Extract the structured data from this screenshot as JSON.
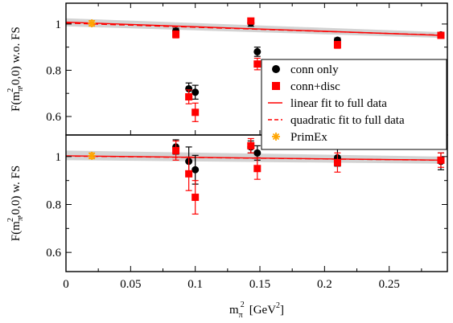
{
  "chart_data": {
    "type": "scatter",
    "xlabel_main": "m",
    "xlabel_sub": "π",
    "xlabel_sup": "2",
    "xlabel_units": "[GeV",
    "xlabel_units_sup": "2",
    "xlabel_units_close": "]",
    "xlim": [
      0,
      0.295
    ],
    "xticks": [
      0,
      0.05,
      0.1,
      0.15,
      0.2,
      0.25
    ],
    "xtick_labels": [
      "0",
      "0.05",
      "0.1",
      "0.15",
      "0.2",
      "0.25"
    ],
    "legend_placement": "right of upper panel",
    "legend": [
      {
        "label": "conn only",
        "marker": "circle",
        "color": "#000000"
      },
      {
        "label": "conn+disc",
        "marker": "square",
        "color": "#ff0000"
      },
      {
        "label": "linear fit to full data",
        "marker": "solid-line",
        "color": "#ff0000"
      },
      {
        "label": "quadratic fit to full data",
        "marker": "dashed-line",
        "color": "#ff0000"
      },
      {
        "label": "PrimEx",
        "marker": "star",
        "color": "#ffa500"
      }
    ],
    "panels": [
      {
        "id": "top",
        "ylabel": "F(m",
        "ylabel_sub": "π",
        "ylabel_rest": ",0,0) w.o. FS",
        "ylim": [
          0.52,
          1.09
        ],
        "yticks": [
          0.6,
          0.8,
          1.0
        ],
        "ytick_labels": [
          "0.6",
          "0.8",
          "1"
        ],
        "band": {
          "x": [
            0,
            0.29
          ],
          "upper": [
            1.025,
            0.965
          ],
          "lower": [
            0.99,
            0.94
          ]
        },
        "linear_fit": {
          "x": [
            0,
            0.29
          ],
          "y": [
            1.008,
            0.951
          ]
        },
        "quadratic_fit": {
          "x": [
            0,
            0.05,
            0.1,
            0.15,
            0.2,
            0.25,
            0.29
          ],
          "y": [
            1.004,
            0.995,
            0.986,
            0.977,
            0.968,
            0.959,
            0.952
          ]
        },
        "conn_only": [
          {
            "x": 0.085,
            "y": 0.97,
            "err": 0.012
          },
          {
            "x": 0.095,
            "y": 0.72,
            "err": 0.025
          },
          {
            "x": 0.1,
            "y": 0.705,
            "err": 0.03
          },
          {
            "x": 0.143,
            "y": 1.005,
            "err": 0.015
          },
          {
            "x": 0.148,
            "y": 0.88,
            "err": 0.02
          },
          {
            "x": 0.21,
            "y": 0.93,
            "err": 0.01
          },
          {
            "x": 0.29,
            "y": 0.953,
            "err": 0.008
          }
        ],
        "conn_disc": [
          {
            "x": 0.085,
            "y": 0.955,
            "err": 0.015
          },
          {
            "x": 0.095,
            "y": 0.685,
            "err": 0.03
          },
          {
            "x": 0.1,
            "y": 0.618,
            "err": 0.04
          },
          {
            "x": 0.143,
            "y": 1.013,
            "err": 0.012
          },
          {
            "x": 0.148,
            "y": 0.827,
            "err": 0.025
          },
          {
            "x": 0.21,
            "y": 0.91,
            "err": 0.015
          },
          {
            "x": 0.29,
            "y": 0.951,
            "err": 0.01
          }
        ],
        "primex": {
          "x": 0.02,
          "y": 1.003,
          "err": 0.012
        }
      },
      {
        "id": "bottom",
        "ylabel": "F(m",
        "ylabel_sub": "π",
        "ylabel_rest": ",0,0) w. FS",
        "ylim": [
          0.52,
          1.09
        ],
        "yticks": [
          0.6,
          0.8,
          1.0
        ],
        "ytick_labels": [
          "0.6",
          "0.8",
          "1"
        ],
        "band": {
          "x": [
            0,
            0.29
          ],
          "upper": [
            1.025,
            1.0
          ],
          "lower": [
            0.985,
            0.97
          ]
        },
        "linear_fit": {
          "x": [
            0,
            0.29
          ],
          "y": [
            1.003,
            0.985
          ]
        },
        "quadratic_fit": {
          "x": [
            0,
            0.05,
            0.1,
            0.15,
            0.2,
            0.25,
            0.29
          ],
          "y": [
            1.002,
            0.999,
            0.996,
            0.993,
            0.99,
            0.987,
            0.985
          ]
        },
        "conn_only": [
          {
            "x": 0.085,
            "y": 1.04,
            "err": 0.03
          },
          {
            "x": 0.095,
            "y": 0.98,
            "err": 0.06
          },
          {
            "x": 0.1,
            "y": 0.945,
            "err": 0.06
          },
          {
            "x": 0.143,
            "y": 1.04,
            "err": 0.025
          },
          {
            "x": 0.148,
            "y": 1.015,
            "err": 0.03
          },
          {
            "x": 0.21,
            "y": 0.995,
            "err": 0.035
          },
          {
            "x": 0.29,
            "y": 0.98,
            "err": 0.035
          }
        ],
        "conn_disc": [
          {
            "x": 0.085,
            "y": 1.025,
            "err": 0.04
          },
          {
            "x": 0.095,
            "y": 0.928,
            "err": 0.07
          },
          {
            "x": 0.1,
            "y": 0.83,
            "err": 0.07
          },
          {
            "x": 0.143,
            "y": 1.045,
            "err": 0.03
          },
          {
            "x": 0.148,
            "y": 0.95,
            "err": 0.045
          },
          {
            "x": 0.21,
            "y": 0.975,
            "err": 0.04
          },
          {
            "x": 0.29,
            "y": 0.985,
            "err": 0.03
          }
        ],
        "primex": {
          "x": 0.02,
          "y": 1.003,
          "err": 0.012
        }
      }
    ]
  }
}
